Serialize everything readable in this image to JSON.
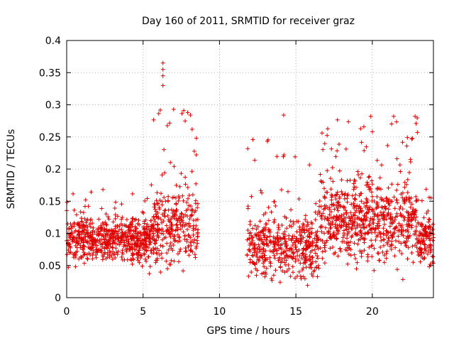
{
  "chart_data": {
    "type": "scatter",
    "title": "Day 160 of 2011, SRMTID for receiver graz",
    "xlabel": "GPS time / hours",
    "ylabel": "SRMTID / TECUs",
    "xlim": [
      0,
      24
    ],
    "ylim": [
      0,
      0.4
    ],
    "x_ticks": [
      0,
      5,
      10,
      15,
      20
    ],
    "x_tick_labels": [
      "0",
      "5",
      "10",
      "15",
      "20"
    ],
    "y_ticks": [
      0,
      0.05,
      0.1,
      0.15,
      0.2,
      0.25,
      0.3,
      0.35,
      0.4
    ],
    "y_tick_labels": [
      "0",
      "0.05",
      "0.1",
      "0.15",
      "0.2",
      "0.25",
      "0.3",
      "0.35",
      "0.4"
    ],
    "grid": true,
    "marker": "+",
    "series": [
      {
        "name": "SRMTID",
        "color": "#e00000",
        "point_count": 2200,
        "data_gap_hours": [
          8.6,
          11.8
        ],
        "segments": [
          {
            "x_range": [
              0,
              5.5
            ],
            "typical_range": [
              0.03,
              0.16
            ]
          },
          {
            "x_range": [
              5.5,
              8.6
            ],
            "typical_range": [
              0.01,
              0.3
            ]
          },
          {
            "x_range": [
              11.8,
              16.5
            ],
            "typical_range": [
              0.0,
              0.25
            ]
          },
          {
            "x_range": [
              16.5,
              23.0
            ],
            "typical_range": [
              0.01,
              0.28
            ]
          },
          {
            "x_range": [
              23.0,
              24.0
            ],
            "typical_range": [
              0.02,
              0.16
            ]
          }
        ],
        "peaks": [
          {
            "x": 6.3,
            "y": 0.365
          },
          {
            "x": 6.3,
            "y": 0.355
          },
          {
            "x": 6.3,
            "y": 0.345
          },
          {
            "x": 6.3,
            "y": 0.33
          },
          {
            "x": 7.0,
            "y": 0.293
          },
          {
            "x": 14.2,
            "y": 0.284
          },
          {
            "x": 19.9,
            "y": 0.282
          },
          {
            "x": 21.4,
            "y": 0.282
          },
          {
            "x": 22.8,
            "y": 0.282
          }
        ]
      }
    ]
  }
}
